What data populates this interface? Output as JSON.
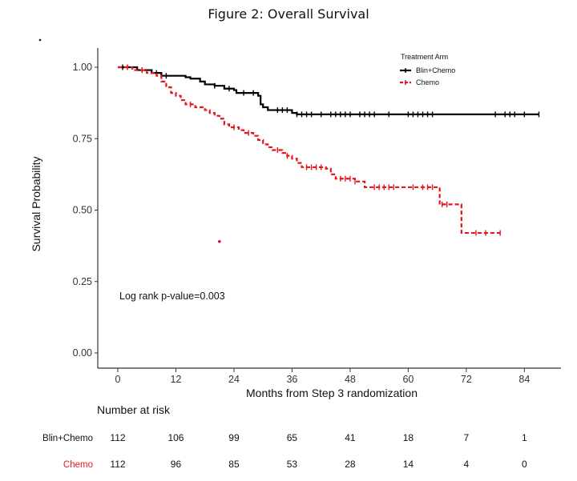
{
  "figure_title": "Figure 2:  Overall Survival",
  "chart_data": {
    "type": "line",
    "subtype": "kaplan-meier",
    "title": "Figure 2:  Overall Survival",
    "xlabel": "Months from Step 3 randomization",
    "ylabel": "Survival Probability",
    "xlim": [
      -3,
      90
    ],
    "ylim": [
      -0.05,
      1.05
    ],
    "x_ticks": [
      0,
      12,
      24,
      36,
      48,
      60,
      72,
      84
    ],
    "x_tick_labels": [
      "0",
      "12",
      "24",
      "36",
      "48",
      "60",
      "72",
      "84"
    ],
    "y_ticks": [
      0,
      0.25,
      0.5,
      0.75,
      1.0
    ],
    "y_tick_labels": [
      "0.00",
      "0.25",
      "0.50",
      "0.75",
      "1.00"
    ],
    "grid": false,
    "legend": {
      "title": "Treatment Arm",
      "placement": "top-right",
      "entries": [
        "Blin+Chemo",
        "Chemo"
      ]
    },
    "annotation": "Log rank p-value=0.003",
    "series": [
      {
        "name": "Blin+Chemo",
        "color": "#000000",
        "line_style": "solid",
        "steps": [
          [
            0,
            1.0
          ],
          [
            4,
            0.99
          ],
          [
            7,
            0.98
          ],
          [
            9,
            0.97
          ],
          [
            14,
            0.965
          ],
          [
            15,
            0.96
          ],
          [
            17,
            0.95
          ],
          [
            18,
            0.94
          ],
          [
            20,
            0.935
          ],
          [
            22,
            0.925
          ],
          [
            24,
            0.92
          ],
          [
            24.5,
            0.91
          ],
          [
            29,
            0.9
          ],
          [
            29.5,
            0.87
          ],
          [
            30,
            0.86
          ],
          [
            31,
            0.85
          ],
          [
            36,
            0.84
          ],
          [
            37,
            0.835
          ],
          [
            87,
            0.835
          ]
        ],
        "censor_times": [
          1,
          5,
          8,
          10,
          20,
          23,
          26,
          28,
          33,
          34,
          35,
          37,
          38,
          39,
          40,
          42,
          44,
          45,
          46,
          47,
          48,
          50,
          51,
          52,
          53,
          56,
          60,
          61,
          62,
          63,
          64,
          65,
          78,
          80,
          81,
          82,
          84,
          87
        ]
      },
      {
        "name": "Chemo",
        "color": "#e8141b",
        "line_style": "dashed",
        "steps": [
          [
            0,
            1.0
          ],
          [
            3,
            0.99
          ],
          [
            6,
            0.98
          ],
          [
            8,
            0.97
          ],
          [
            9,
            0.95
          ],
          [
            10,
            0.93
          ],
          [
            11,
            0.91
          ],
          [
            12,
            0.9
          ],
          [
            13,
            0.885
          ],
          [
            14,
            0.87
          ],
          [
            16,
            0.86
          ],
          [
            18,
            0.85
          ],
          [
            19,
            0.84
          ],
          [
            20,
            0.83
          ],
          [
            21,
            0.82
          ],
          [
            22,
            0.8
          ],
          [
            23,
            0.79
          ],
          [
            25,
            0.78
          ],
          [
            26,
            0.77
          ],
          [
            28,
            0.76
          ],
          [
            29,
            0.745
          ],
          [
            30,
            0.73
          ],
          [
            31,
            0.72
          ],
          [
            32,
            0.71
          ],
          [
            34,
            0.7
          ],
          [
            35,
            0.69
          ],
          [
            36,
            0.68
          ],
          [
            37,
            0.665
          ],
          [
            38,
            0.65
          ],
          [
            43,
            0.645
          ],
          [
            44,
            0.625
          ],
          [
            45,
            0.61
          ],
          [
            49,
            0.6
          ],
          [
            51,
            0.58
          ],
          [
            66,
            0.58
          ],
          [
            66.5,
            0.52
          ],
          [
            70,
            0.52
          ],
          [
            71,
            0.42
          ],
          [
            79,
            0.42
          ]
        ],
        "censor_times": [
          2,
          5,
          15,
          24,
          27,
          33,
          35,
          39,
          40,
          41,
          42,
          46,
          47,
          48,
          49,
          53,
          54,
          55,
          56,
          57,
          61,
          63,
          64,
          65,
          67,
          68,
          74,
          76,
          79
        ]
      }
    ],
    "stray_point": {
      "x": 21,
      "y": 0.39,
      "color": "#c8102e"
    }
  },
  "risk_table": {
    "title": "Number at risk",
    "times": [
      0,
      12,
      24,
      36,
      48,
      60,
      72,
      84
    ],
    "rows": [
      {
        "label": "Blin+Chemo",
        "color": "#111111",
        "values": [
          "112",
          "106",
          "99",
          "65",
          "41",
          "18",
          "7",
          "1"
        ]
      },
      {
        "label": "Chemo",
        "color": "#e8141b",
        "values": [
          "112",
          "96",
          "85",
          "53",
          "28",
          "14",
          "4",
          "0"
        ]
      }
    ]
  }
}
